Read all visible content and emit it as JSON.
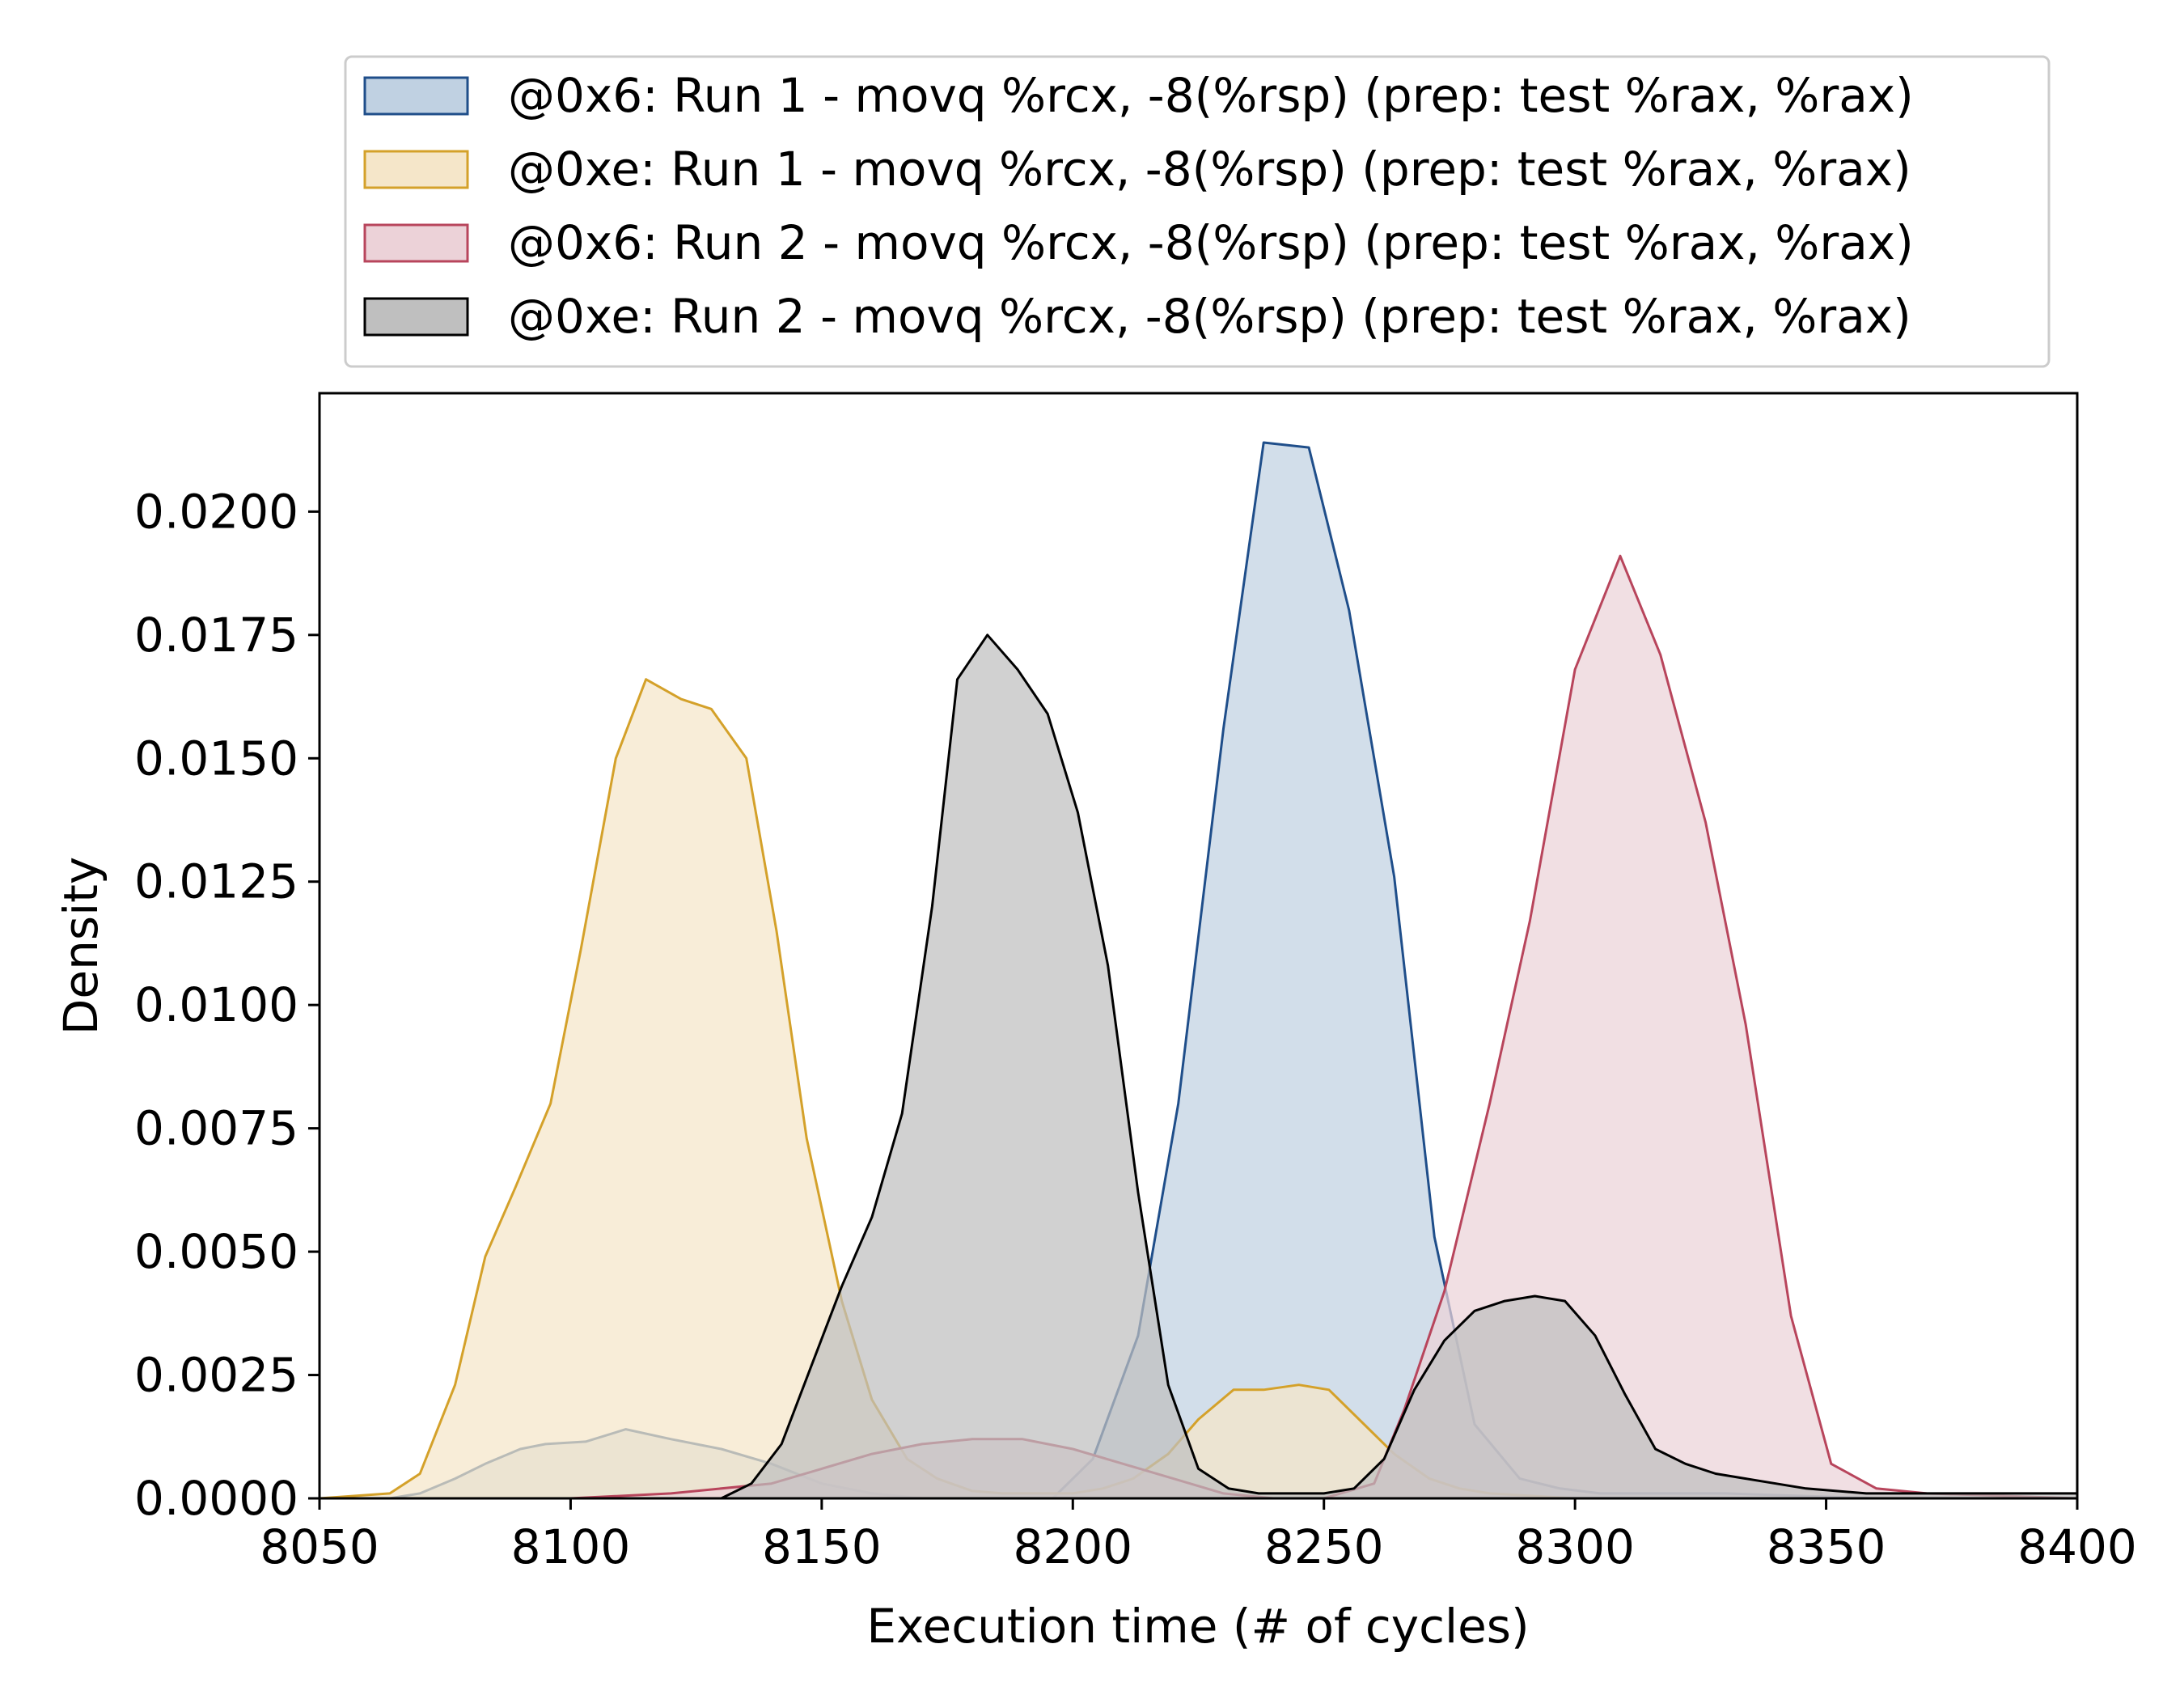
{
  "chart_data": {
    "type": "area",
    "title": "",
    "xlabel": "Execution time (# of cycles)",
    "ylabel": "Density",
    "xlim": [
      8050,
      8400
    ],
    "ylim": [
      0,
      0.0224
    ],
    "x_ticks": [
      8050,
      8100,
      8150,
      8200,
      8250,
      8300,
      8350,
      8400
    ],
    "x_tick_labels": [
      "8050",
      "8100",
      "8150",
      "8200",
      "8250",
      "8300",
      "8350",
      "8400"
    ],
    "y_ticks": [
      0,
      0.0025,
      0.005,
      0.0075,
      0.01,
      0.0125,
      0.015,
      0.0175,
      0.02
    ],
    "y_tick_labels": [
      "0.0000",
      "0.0025",
      "0.0050",
      "0.0075",
      "0.0100",
      "0.0125",
      "0.0150",
      "0.0175",
      "0.0200"
    ],
    "grid": false,
    "legend_position": "top-center, above plot",
    "series": [
      {
        "name": "@0x6: Run 1 - movq %rcx, -8(%rsp) (prep: test %rax, %rax)",
        "stroke": "#1f4e8a",
        "fill": "#c0d1e2",
        "points": [
          [
            8050,
            0
          ],
          [
            8064,
            0
          ],
          [
            8070,
            0.0001
          ],
          [
            8077,
            0.0004
          ],
          [
            8083,
            0.0007
          ],
          [
            8090,
            0.001
          ],
          [
            8095,
            0.0011
          ],
          [
            8103,
            0.00115
          ],
          [
            8111,
            0.0014
          ],
          [
            8120,
            0.0012
          ],
          [
            8130,
            0.001
          ],
          [
            8140,
            0.0007
          ],
          [
            8150,
            0.0003
          ],
          [
            8160,
            0.0001
          ],
          [
            8170,
            0
          ],
          [
            8196,
            0
          ],
          [
            8204,
            0.0008
          ],
          [
            8213,
            0.0033
          ],
          [
            8221,
            0.008
          ],
          [
            8230,
            0.0156
          ],
          [
            8238,
            0.0214
          ],
          [
            8247,
            0.0213
          ],
          [
            8255,
            0.018
          ],
          [
            8264,
            0.0126
          ],
          [
            8272,
            0.0053
          ],
          [
            8280,
            0.0015
          ],
          [
            8289,
            0.0004
          ],
          [
            8297,
            0.0002
          ],
          [
            8305,
            0.0001
          ],
          [
            8330,
            0.0001
          ],
          [
            8360,
            0
          ],
          [
            8400,
            0
          ]
        ]
      },
      {
        "name": "@0xe: Run 1 - movq %rcx, -8(%rsp) (prep: test %rax, %rax)",
        "stroke": "#d4a12a",
        "fill": "#f5e6c9",
        "points": [
          [
            8050,
            0
          ],
          [
            8064,
            0.0001
          ],
          [
            8070,
            0.0005
          ],
          [
            8077,
            0.0023
          ],
          [
            8083,
            0.0049
          ],
          [
            8089,
            0.0063
          ],
          [
            8096,
            0.008
          ],
          [
            8102,
            0.0111
          ],
          [
            8109,
            0.015
          ],
          [
            8115,
            0.0166
          ],
          [
            8122,
            0.0162
          ],
          [
            8128,
            0.016
          ],
          [
            8135,
            0.015
          ],
          [
            8141,
            0.0115
          ],
          [
            8147,
            0.0073
          ],
          [
            8154,
            0.004
          ],
          [
            8160,
            0.002
          ],
          [
            8167,
            0.0008
          ],
          [
            8173,
            0.0004
          ],
          [
            8180,
            0.00015
          ],
          [
            8186,
            0.0001
          ],
          [
            8200,
            0.0001
          ],
          [
            8206,
            0.0002
          ],
          [
            8212,
            0.0004
          ],
          [
            8219,
            0.0009
          ],
          [
            8225,
            0.0016
          ],
          [
            8232,
            0.0022
          ],
          [
            8238,
            0.0022
          ],
          [
            8245,
            0.0023
          ],
          [
            8251,
            0.0022
          ],
          [
            8258,
            0.0015
          ],
          [
            8264,
            0.0009
          ],
          [
            8271,
            0.0004
          ],
          [
            8277,
            0.0002
          ],
          [
            8283,
            0.0001
          ],
          [
            8300,
            0
          ],
          [
            8400,
            0
          ]
        ]
      },
      {
        "name": "@0x6: Run 2 - movq %rcx, -8(%rsp) (prep: test %rax, %rax)",
        "stroke": "#b8455c",
        "fill": "#ecd2d8",
        "points": [
          [
            8050,
            0
          ],
          [
            8100,
            0
          ],
          [
            8120,
            0.0001
          ],
          [
            8140,
            0.0003
          ],
          [
            8150,
            0.0006
          ],
          [
            8160,
            0.0009
          ],
          [
            8170,
            0.0011
          ],
          [
            8180,
            0.0012
          ],
          [
            8190,
            0.0012
          ],
          [
            8200,
            0.001
          ],
          [
            8210,
            0.0007
          ],
          [
            8220,
            0.0004
          ],
          [
            8230,
            0.0001
          ],
          [
            8240,
            0
          ],
          [
            8250,
            0
          ],
          [
            8260,
            0.0003
          ],
          [
            8266,
            0.0018
          ],
          [
            8274,
            0.0042
          ],
          [
            8283,
            0.008
          ],
          [
            8291,
            0.0117
          ],
          [
            8300,
            0.0168
          ],
          [
            8309,
            0.0191
          ],
          [
            8317,
            0.0171
          ],
          [
            8326,
            0.0137
          ],
          [
            8334,
            0.0096
          ],
          [
            8343,
            0.0037
          ],
          [
            8351,
            0.0007
          ],
          [
            8360,
            0.0002
          ],
          [
            8370,
            0.0001
          ],
          [
            8400,
            0
          ]
        ]
      },
      {
        "name": "@0xe: Run 2 - movq %rcx, -8(%rsp) (prep: test %rax, %rax)",
        "stroke": "#000000",
        "fill": "#bfbfbf",
        "points": [
          [
            8050,
            0
          ],
          [
            8130,
            0
          ],
          [
            8136,
            0.0003
          ],
          [
            8142,
            0.0011
          ],
          [
            8148,
            0.0027
          ],
          [
            8154,
            0.0043
          ],
          [
            8160,
            0.0057
          ],
          [
            8166,
            0.0078
          ],
          [
            8172,
            0.012
          ],
          [
            8177,
            0.0166
          ],
          [
            8183,
            0.0175
          ],
          [
            8189,
            0.0168
          ],
          [
            8195,
            0.0159
          ],
          [
            8201,
            0.0139
          ],
          [
            8207,
            0.0108
          ],
          [
            8213,
            0.0062
          ],
          [
            8219,
            0.0023
          ],
          [
            8225,
            0.0006
          ],
          [
            8231,
            0.0002
          ],
          [
            8237,
            0.0001
          ],
          [
            8250,
            0.0001
          ],
          [
            8256,
            0.0002
          ],
          [
            8262,
            0.0008
          ],
          [
            8268,
            0.0022
          ],
          [
            8274,
            0.0032
          ],
          [
            8280,
            0.0038
          ],
          [
            8286,
            0.004
          ],
          [
            8292,
            0.0041
          ],
          [
            8298,
            0.004
          ],
          [
            8304,
            0.0033
          ],
          [
            8310,
            0.0021
          ],
          [
            8316,
            0.001
          ],
          [
            8322,
            0.0007
          ],
          [
            8328,
            0.0005
          ],
          [
            8334,
            0.0004
          ],
          [
            8346,
            0.0002
          ],
          [
            8358,
            0.0001
          ],
          [
            8370,
            0.0001
          ],
          [
            8382,
            0.0001
          ],
          [
            8394,
            0.0001
          ],
          [
            8400,
            0.0001
          ]
        ]
      }
    ]
  }
}
